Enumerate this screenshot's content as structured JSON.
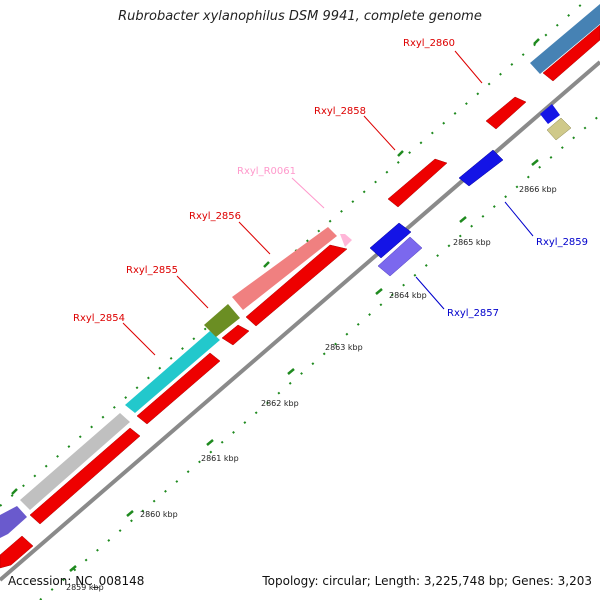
{
  "title": "Rubrobacter xylanophilus DSM 9941, complete genome",
  "footer": {
    "accession": "Accession: NC_008148",
    "summary": "Topology: circular; Length: 3,225,748 bp; Genes: 3,203"
  },
  "colors": {
    "backbone": "#8a8a8a",
    "forward_label": "#dd0000",
    "reverse_label": "#0000cc",
    "rna_label": "#ff99cc",
    "tick": "#1f8a1f"
  },
  "kbp_labels": [
    "2859 kbp",
    "2860 kbp",
    "2861 kbp",
    "2862 kbp",
    "2863 kbp",
    "2864 kbp",
    "2865 kbp",
    "2866 kbp"
  ],
  "gene_labels": [
    {
      "id": "Rxyl_2854",
      "strand": "forward"
    },
    {
      "id": "Rxyl_2855",
      "strand": "forward"
    },
    {
      "id": "Rxyl_2856",
      "strand": "forward"
    },
    {
      "id": "Rxyl_R0061",
      "strand": "rna"
    },
    {
      "id": "Rxyl_2858",
      "strand": "forward"
    },
    {
      "id": "Rxyl_2860",
      "strand": "forward"
    },
    {
      "id": "Rxyl_2859",
      "strand": "reverse"
    },
    {
      "id": "Rxyl_2857",
      "strand": "reverse"
    }
  ]
}
